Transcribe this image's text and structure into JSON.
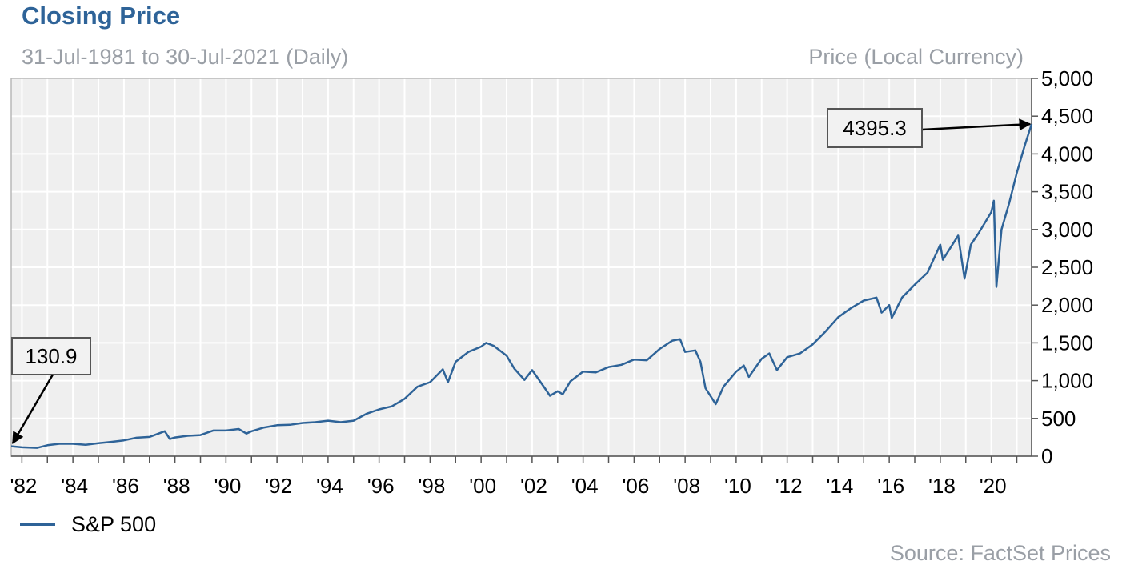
{
  "header": {
    "title": "Closing Price",
    "subtitle": "31-Jul-1981 to 30-Jul-2021 (Daily)",
    "y_unit": "Price (Local Currency)"
  },
  "footer": {
    "source": "Source: FactSet Prices"
  },
  "legend": [
    {
      "label": "S&P 500",
      "color": "#2e6398"
    }
  ],
  "chart_data": {
    "type": "line",
    "grid": true,
    "y_axis_side": "right",
    "xlim": [
      1981.58,
      2021.58
    ],
    "ylim": [
      0,
      5000
    ],
    "y_ticks": [
      0,
      500,
      1000,
      1500,
      2000,
      2500,
      3000,
      3500,
      4000,
      4500,
      5000
    ],
    "y_tick_labels": [
      "0",
      "500",
      "1,000",
      "1,500",
      "2,000",
      "2,500",
      "3,000",
      "3,500",
      "4,000",
      "4,500",
      "5,000"
    ],
    "x_ticks": [
      1982,
      1984,
      1986,
      1988,
      1990,
      1992,
      1994,
      1996,
      1998,
      2000,
      2002,
      2004,
      2006,
      2008,
      2010,
      2012,
      2014,
      2016,
      2018,
      2020
    ],
    "x_tick_labels": [
      "'82",
      "'84",
      "'86",
      "'88",
      "'90",
      "'92",
      "'94",
      "'96",
      "'98",
      "'00",
      "'02",
      "'04",
      "'06",
      "'08",
      "'10",
      "'12",
      "'14",
      "'16",
      "'18",
      "'20"
    ],
    "series": [
      {
        "name": "S&P 500",
        "color": "#2e6398",
        "points": [
          [
            1981.58,
            130.9
          ],
          [
            1982.0,
            118
          ],
          [
            1982.6,
            110
          ],
          [
            1983.0,
            145
          ],
          [
            1983.5,
            165
          ],
          [
            1984.0,
            164
          ],
          [
            1984.5,
            152
          ],
          [
            1985.0,
            172
          ],
          [
            1985.5,
            190
          ],
          [
            1986.0,
            210
          ],
          [
            1986.5,
            245
          ],
          [
            1987.0,
            255
          ],
          [
            1987.6,
            330
          ],
          [
            1987.8,
            228
          ],
          [
            1988.0,
            248
          ],
          [
            1988.5,
            270
          ],
          [
            1989.0,
            280
          ],
          [
            1989.5,
            340
          ],
          [
            1990.0,
            340
          ],
          [
            1990.5,
            360
          ],
          [
            1990.8,
            300
          ],
          [
            1991.0,
            330
          ],
          [
            1991.5,
            380
          ],
          [
            1992.0,
            410
          ],
          [
            1992.5,
            415
          ],
          [
            1993.0,
            440
          ],
          [
            1993.5,
            450
          ],
          [
            1994.0,
            470
          ],
          [
            1994.5,
            450
          ],
          [
            1995.0,
            470
          ],
          [
            1995.5,
            560
          ],
          [
            1996.0,
            620
          ],
          [
            1996.5,
            660
          ],
          [
            1997.0,
            760
          ],
          [
            1997.5,
            920
          ],
          [
            1998.0,
            980
          ],
          [
            1998.5,
            1150
          ],
          [
            1998.7,
            980
          ],
          [
            1999.0,
            1250
          ],
          [
            1999.5,
            1380
          ],
          [
            2000.0,
            1450
          ],
          [
            2000.2,
            1500
          ],
          [
            2000.5,
            1460
          ],
          [
            2001.0,
            1330
          ],
          [
            2001.3,
            1160
          ],
          [
            2001.7,
            1010
          ],
          [
            2002.0,
            1140
          ],
          [
            2002.5,
            900
          ],
          [
            2002.7,
            800
          ],
          [
            2003.0,
            860
          ],
          [
            2003.2,
            820
          ],
          [
            2003.5,
            990
          ],
          [
            2004.0,
            1120
          ],
          [
            2004.5,
            1110
          ],
          [
            2005.0,
            1180
          ],
          [
            2005.5,
            1210
          ],
          [
            2006.0,
            1280
          ],
          [
            2006.5,
            1270
          ],
          [
            2007.0,
            1420
          ],
          [
            2007.5,
            1530
          ],
          [
            2007.8,
            1550
          ],
          [
            2008.0,
            1380
          ],
          [
            2008.4,
            1400
          ],
          [
            2008.6,
            1250
          ],
          [
            2008.8,
            900
          ],
          [
            2009.2,
            690
          ],
          [
            2009.5,
            920
          ],
          [
            2010.0,
            1120
          ],
          [
            2010.3,
            1200
          ],
          [
            2010.5,
            1050
          ],
          [
            2011.0,
            1290
          ],
          [
            2011.3,
            1360
          ],
          [
            2011.6,
            1140
          ],
          [
            2012.0,
            1310
          ],
          [
            2012.5,
            1360
          ],
          [
            2013.0,
            1480
          ],
          [
            2013.5,
            1650
          ],
          [
            2014.0,
            1840
          ],
          [
            2014.5,
            1960
          ],
          [
            2015.0,
            2060
          ],
          [
            2015.5,
            2100
          ],
          [
            2015.7,
            1900
          ],
          [
            2016.0,
            2000
          ],
          [
            2016.1,
            1830
          ],
          [
            2016.5,
            2100
          ],
          [
            2017.0,
            2270
          ],
          [
            2017.5,
            2430
          ],
          [
            2018.0,
            2800
          ],
          [
            2018.1,
            2600
          ],
          [
            2018.7,
            2920
          ],
          [
            2018.95,
            2350
          ],
          [
            2019.2,
            2800
          ],
          [
            2019.5,
            2950
          ],
          [
            2020.0,
            3230
          ],
          [
            2020.1,
            3380
          ],
          [
            2020.2,
            2240
          ],
          [
            2020.4,
            3000
          ],
          [
            2020.7,
            3350
          ],
          [
            2021.0,
            3750
          ],
          [
            2021.3,
            4100
          ],
          [
            2021.58,
            4395.3
          ]
        ]
      }
    ],
    "annotations": [
      {
        "label": "130.9",
        "x": 1981.58,
        "y": 130.9
      },
      {
        "label": "4395.3",
        "x": 2021.58,
        "y": 4395.3
      }
    ]
  }
}
